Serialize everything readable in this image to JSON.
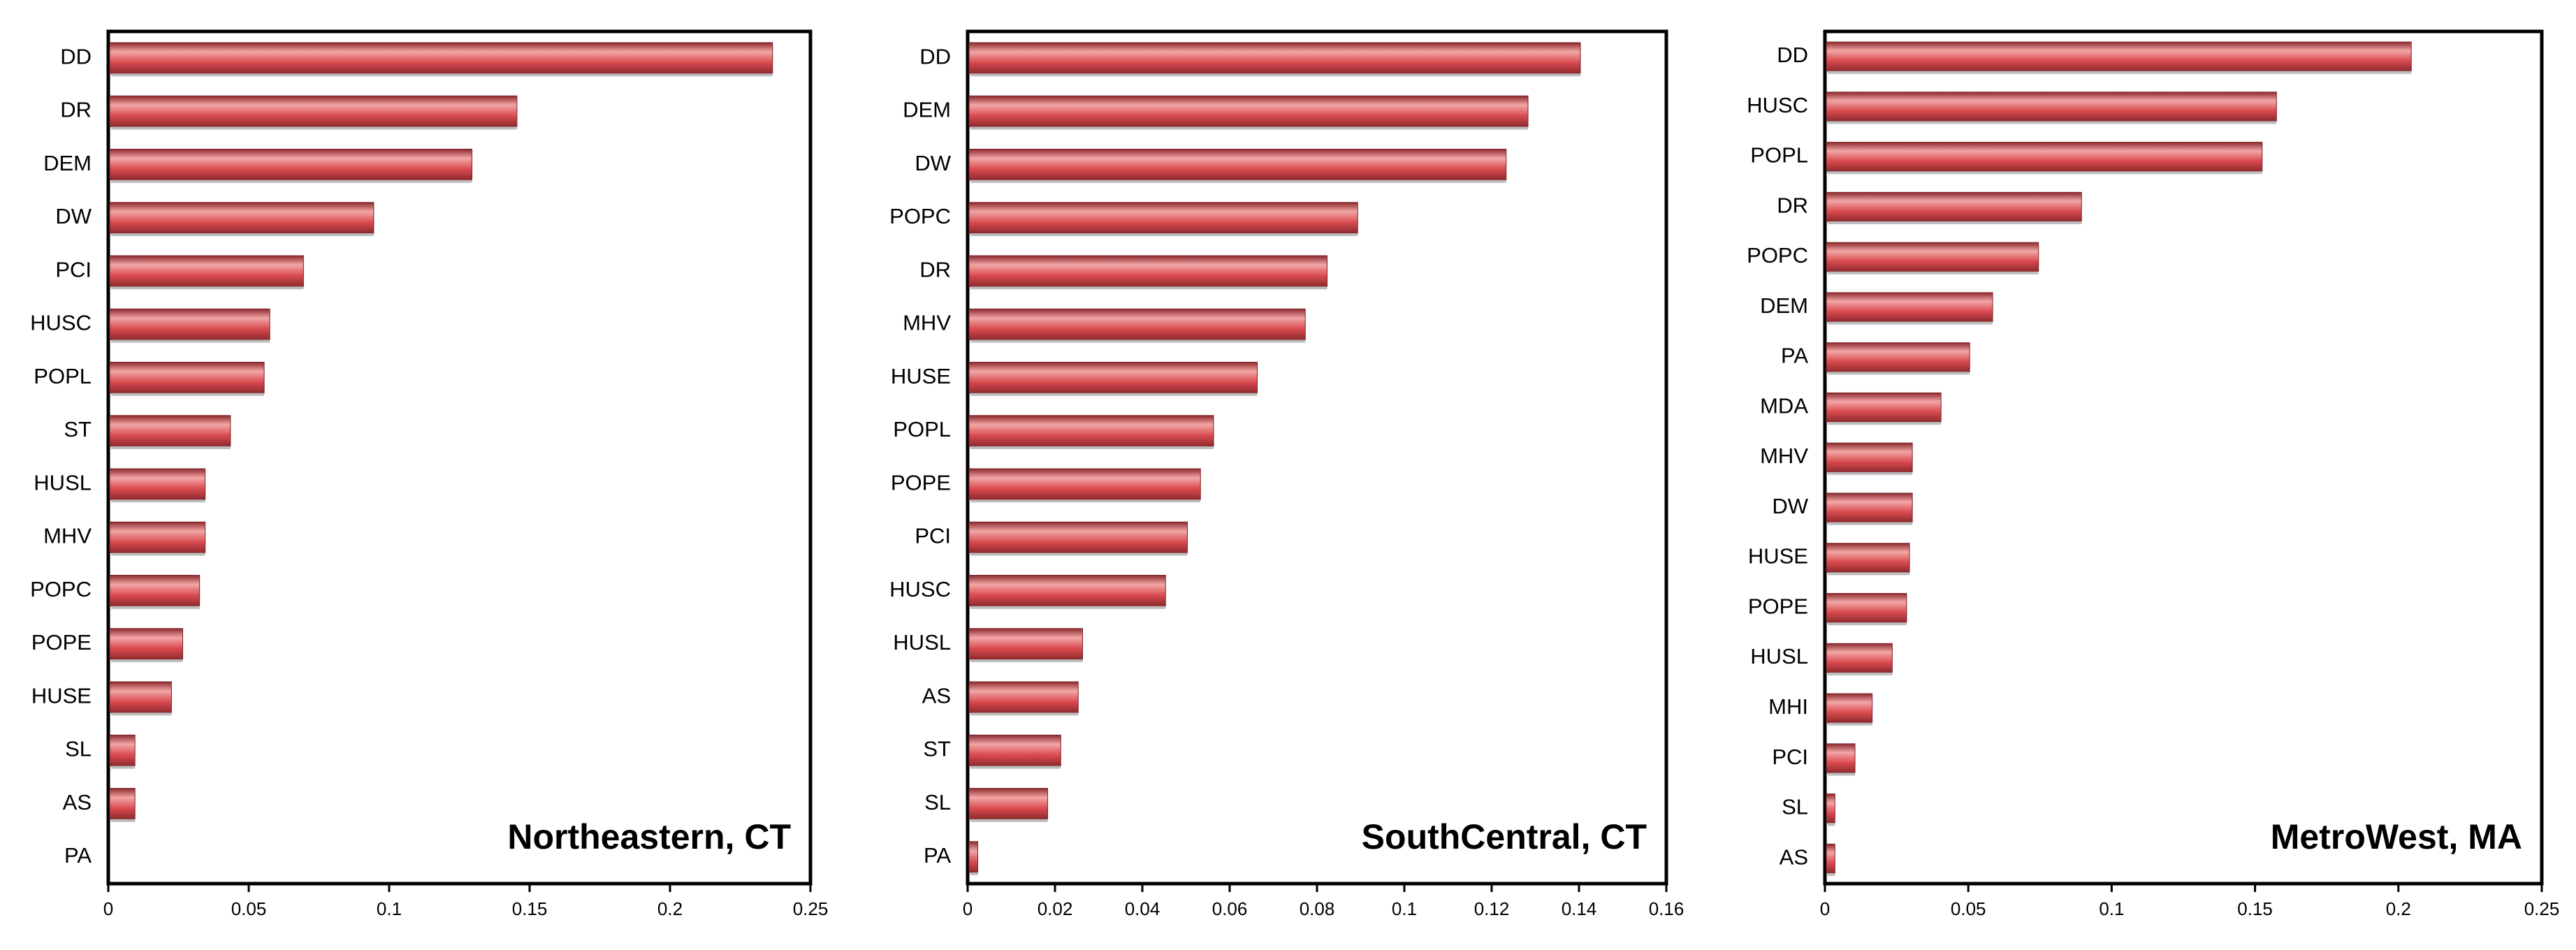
{
  "bar_color": "#d94a4f",
  "bar_highlight": "#f2a6a6",
  "bar_shadow": "#8e2a2e",
  "chart_data": [
    {
      "type": "bar",
      "orientation": "horizontal",
      "title": "Northeastern, CT",
      "xlabel": "",
      "ylabel": "",
      "xlim": [
        0,
        0.25
      ],
      "xticks": [
        "0",
        "0.05",
        "0.1",
        "0.15",
        "0.2",
        "0.25"
      ],
      "grid": false,
      "categories": [
        "DD",
        "DR",
        "DEM",
        "DW",
        "PCI",
        "HUSC",
        "POPL",
        "ST",
        "HUSL",
        "MHV",
        "POPC",
        "POPE",
        "HUSE",
        "SL",
        "AS",
        "PA"
      ],
      "values": [
        0.236,
        0.145,
        0.129,
        0.094,
        0.069,
        0.057,
        0.055,
        0.043,
        0.034,
        0.034,
        0.032,
        0.026,
        0.022,
        0.009,
        0.009,
        0.0
      ]
    },
    {
      "type": "bar",
      "orientation": "horizontal",
      "title": "SouthCentral, CT",
      "xlabel": "",
      "ylabel": "",
      "xlim": [
        0,
        0.16
      ],
      "xticks": [
        "0",
        "0.02",
        "0.04",
        "0.06",
        "0.08",
        "0.1",
        "0.12",
        "0.14",
        "0.16"
      ],
      "grid": false,
      "categories": [
        "DD",
        "DEM",
        "DW",
        "POPC",
        "DR",
        "MHV",
        "HUSE",
        "POPL",
        "POPE",
        "PCI",
        "HUSC",
        "HUSL",
        "AS",
        "ST",
        "SL",
        "PA"
      ],
      "values": [
        0.14,
        0.128,
        0.123,
        0.089,
        0.082,
        0.077,
        0.066,
        0.056,
        0.053,
        0.05,
        0.045,
        0.026,
        0.025,
        0.021,
        0.018,
        0.002
      ]
    },
    {
      "type": "bar",
      "orientation": "horizontal",
      "title": "MetroWest, MA",
      "xlabel": "",
      "ylabel": "",
      "xlim": [
        0,
        0.25
      ],
      "xticks": [
        "0",
        "0.05",
        "0.1",
        "0.15",
        "0.2",
        "0.25"
      ],
      "grid": false,
      "categories": [
        "DD",
        "HUSC",
        "POPL",
        "DR",
        "POPC",
        "DEM",
        "PA",
        "MDA",
        "MHV",
        "DW",
        "HUSE",
        "POPE",
        "HUSL",
        "MHI",
        "PCI",
        "SL",
        "AS"
      ],
      "values": [
        0.204,
        0.157,
        0.152,
        0.089,
        0.074,
        0.058,
        0.05,
        0.04,
        0.03,
        0.03,
        0.029,
        0.028,
        0.023,
        0.016,
        0.01,
        0.003,
        0.003
      ]
    }
  ]
}
